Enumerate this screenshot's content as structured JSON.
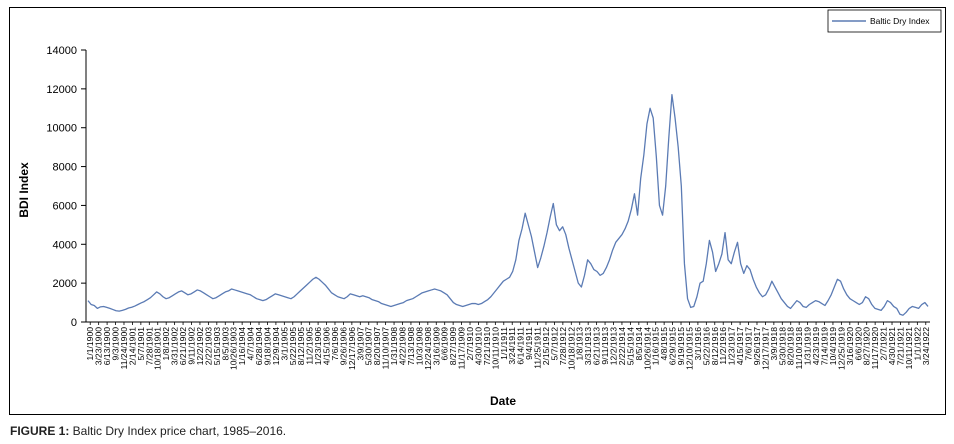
{
  "caption": {
    "label": "FIGURE 1:",
    "text": " Baltic Dry Index price chart, 1985–2016."
  },
  "chart_data": {
    "type": "line",
    "title": "",
    "xlabel": "Date",
    "ylabel": "BDI Index",
    "ylim": [
      0,
      14000
    ],
    "yticks": [
      0,
      2000,
      4000,
      6000,
      8000,
      10000,
      12000,
      14000
    ],
    "grid": false,
    "legend_position": "top-right",
    "line_color": "#5b7bb4",
    "x_tick_labels": [
      "1/1/1900",
      "3/23/1900",
      "6/13/1900",
      "9/3/1900",
      "11/24/1900",
      "2/14/1901",
      "5/7/1901",
      "7/28/1901",
      "10/18/1901",
      "1/8/1902",
      "3/31/1902",
      "6/21/1902",
      "9/11/1902",
      "12/2/1902",
      "2/22/1903",
      "5/15/1903",
      "8/5/1903",
      "10/26/1903",
      "1/16/1904",
      "4/7/1904",
      "6/28/1904",
      "9/18/1904",
      "12/9/1904",
      "3/1/1905",
      "5/22/1905",
      "8/12/1905",
      "11/2/1905",
      "1/23/1906",
      "4/15/1906",
      "7/6/1906",
      "9/26/1906",
      "12/17/1906",
      "3/9/1907",
      "5/30/1907",
      "8/20/1907",
      "11/10/1907",
      "1/31/1908",
      "4/22/1908",
      "7/13/1908",
      "10/3/1908",
      "12/24/1908",
      "3/16/1909",
      "6/6/1909",
      "8/27/1909",
      "11/17/1909",
      "2/7/1910",
      "4/30/1910",
      "7/21/1910",
      "10/11/1910",
      "1/1/1911",
      "3/24/1911",
      "6/14/1911",
      "9/4/1911",
      "11/25/1911",
      "2/15/1912",
      "5/7/1912",
      "7/28/1912",
      "10/18/1912",
      "1/8/1913",
      "3/31/1913",
      "6/21/1913",
      "9/11/1913",
      "12/2/1913",
      "2/22/1914",
      "5/15/1914",
      "8/5/1914",
      "10/26/1914",
      "1/16/1915",
      "4/8/1915",
      "6/29/1915",
      "9/19/1915",
      "12/10/1915",
      "3/1/1916",
      "5/22/1916",
      "8/12/1916",
      "11/2/1916",
      "1/23/1917",
      "4/15/1917",
      "7/6/1917",
      "9/26/1917",
      "12/17/1917",
      "3/9/1918",
      "5/30/1918",
      "8/20/1918",
      "11/10/1918",
      "1/31/1919",
      "4/23/1919",
      "7/14/1919",
      "10/4/1919",
      "12/25/1919",
      "3/16/1920",
      "6/6/1920",
      "8/27/1920",
      "11/17/1920",
      "2/7/1921",
      "4/30/1921",
      "7/21/1921",
      "10/11/1921",
      "1/1/1922",
      "3/24/1922"
    ],
    "series": [
      {
        "name": "Baltic Dry Index",
        "values": [
          1100,
          900,
          850,
          700,
          780,
          800,
          750,
          700,
          640,
          580,
          560,
          600,
          650,
          720,
          760,
          820,
          900,
          980,
          1050,
          1150,
          1250,
          1400,
          1550,
          1450,
          1300,
          1200,
          1250,
          1350,
          1450,
          1550,
          1600,
          1500,
          1400,
          1450,
          1550,
          1650,
          1600,
          1500,
          1400,
          1300,
          1200,
          1250,
          1350,
          1450,
          1550,
          1600,
          1700,
          1650,
          1600,
          1550,
          1500,
          1450,
          1400,
          1300,
          1200,
          1150,
          1100,
          1150,
          1250,
          1350,
          1450,
          1400,
          1350,
          1300,
          1250,
          1200,
          1300,
          1450,
          1600,
          1750,
          1900,
          2050,
          2200,
          2300,
          2200,
          2050,
          1900,
          1700,
          1500,
          1400,
          1300,
          1250,
          1200,
          1300,
          1450,
          1400,
          1350,
          1300,
          1350,
          1300,
          1250,
          1150,
          1100,
          1050,
          950,
          900,
          850,
          800,
          850,
          900,
          950,
          1000,
          1100,
          1150,
          1200,
          1300,
          1400,
          1500,
          1550,
          1600,
          1650,
          1700,
          1650,
          1600,
          1500,
          1400,
          1200,
          1000,
          900,
          850,
          800,
          850,
          900,
          950,
          950,
          900,
          950,
          1050,
          1150,
          1300,
          1500,
          1700,
          1900,
          2100,
          2200,
          2300,
          2600,
          3200,
          4200,
          4800,
          5600,
          5000,
          4400,
          3600,
          2800,
          3300,
          3900,
          4600,
          5400,
          6100,
          5000,
          4700,
          4900,
          4500,
          3800,
          3200,
          2600,
          2000,
          1800,
          2400,
          3200,
          3000,
          2700,
          2600,
          2400,
          2500,
          2800,
          3200,
          3700,
          4100,
          4300,
          4500,
          4800,
          5200,
          5800,
          6600,
          5500,
          7400,
          8600,
          10200,
          11000,
          10500,
          8500,
          6000,
          5500,
          7000,
          9500,
          11700,
          10500,
          9000,
          7000,
          3000,
          1200,
          750,
          800,
          1300,
          2000,
          2100,
          3000,
          4200,
          3600,
          2600,
          3000,
          3500,
          4600,
          3200,
          3000,
          3600,
          4100,
          3000,
          2500,
          2900,
          2700,
          2200,
          1800,
          1500,
          1300,
          1400,
          1700,
          2100,
          1800,
          1500,
          1200,
          1000,
          800,
          700,
          900,
          1100,
          1000,
          800,
          750,
          900,
          1000,
          1100,
          1050,
          950,
          850,
          1100,
          1400,
          1800,
          2200,
          2100,
          1700,
          1400,
          1200,
          1100,
          1000,
          900,
          1000,
          1300,
          1200,
          900,
          700,
          650,
          600,
          800,
          1100,
          1000,
          800,
          700,
          400,
          350,
          500,
          700,
          800,
          750,
          700,
          900,
          1000,
          800
        ]
      }
    ]
  }
}
